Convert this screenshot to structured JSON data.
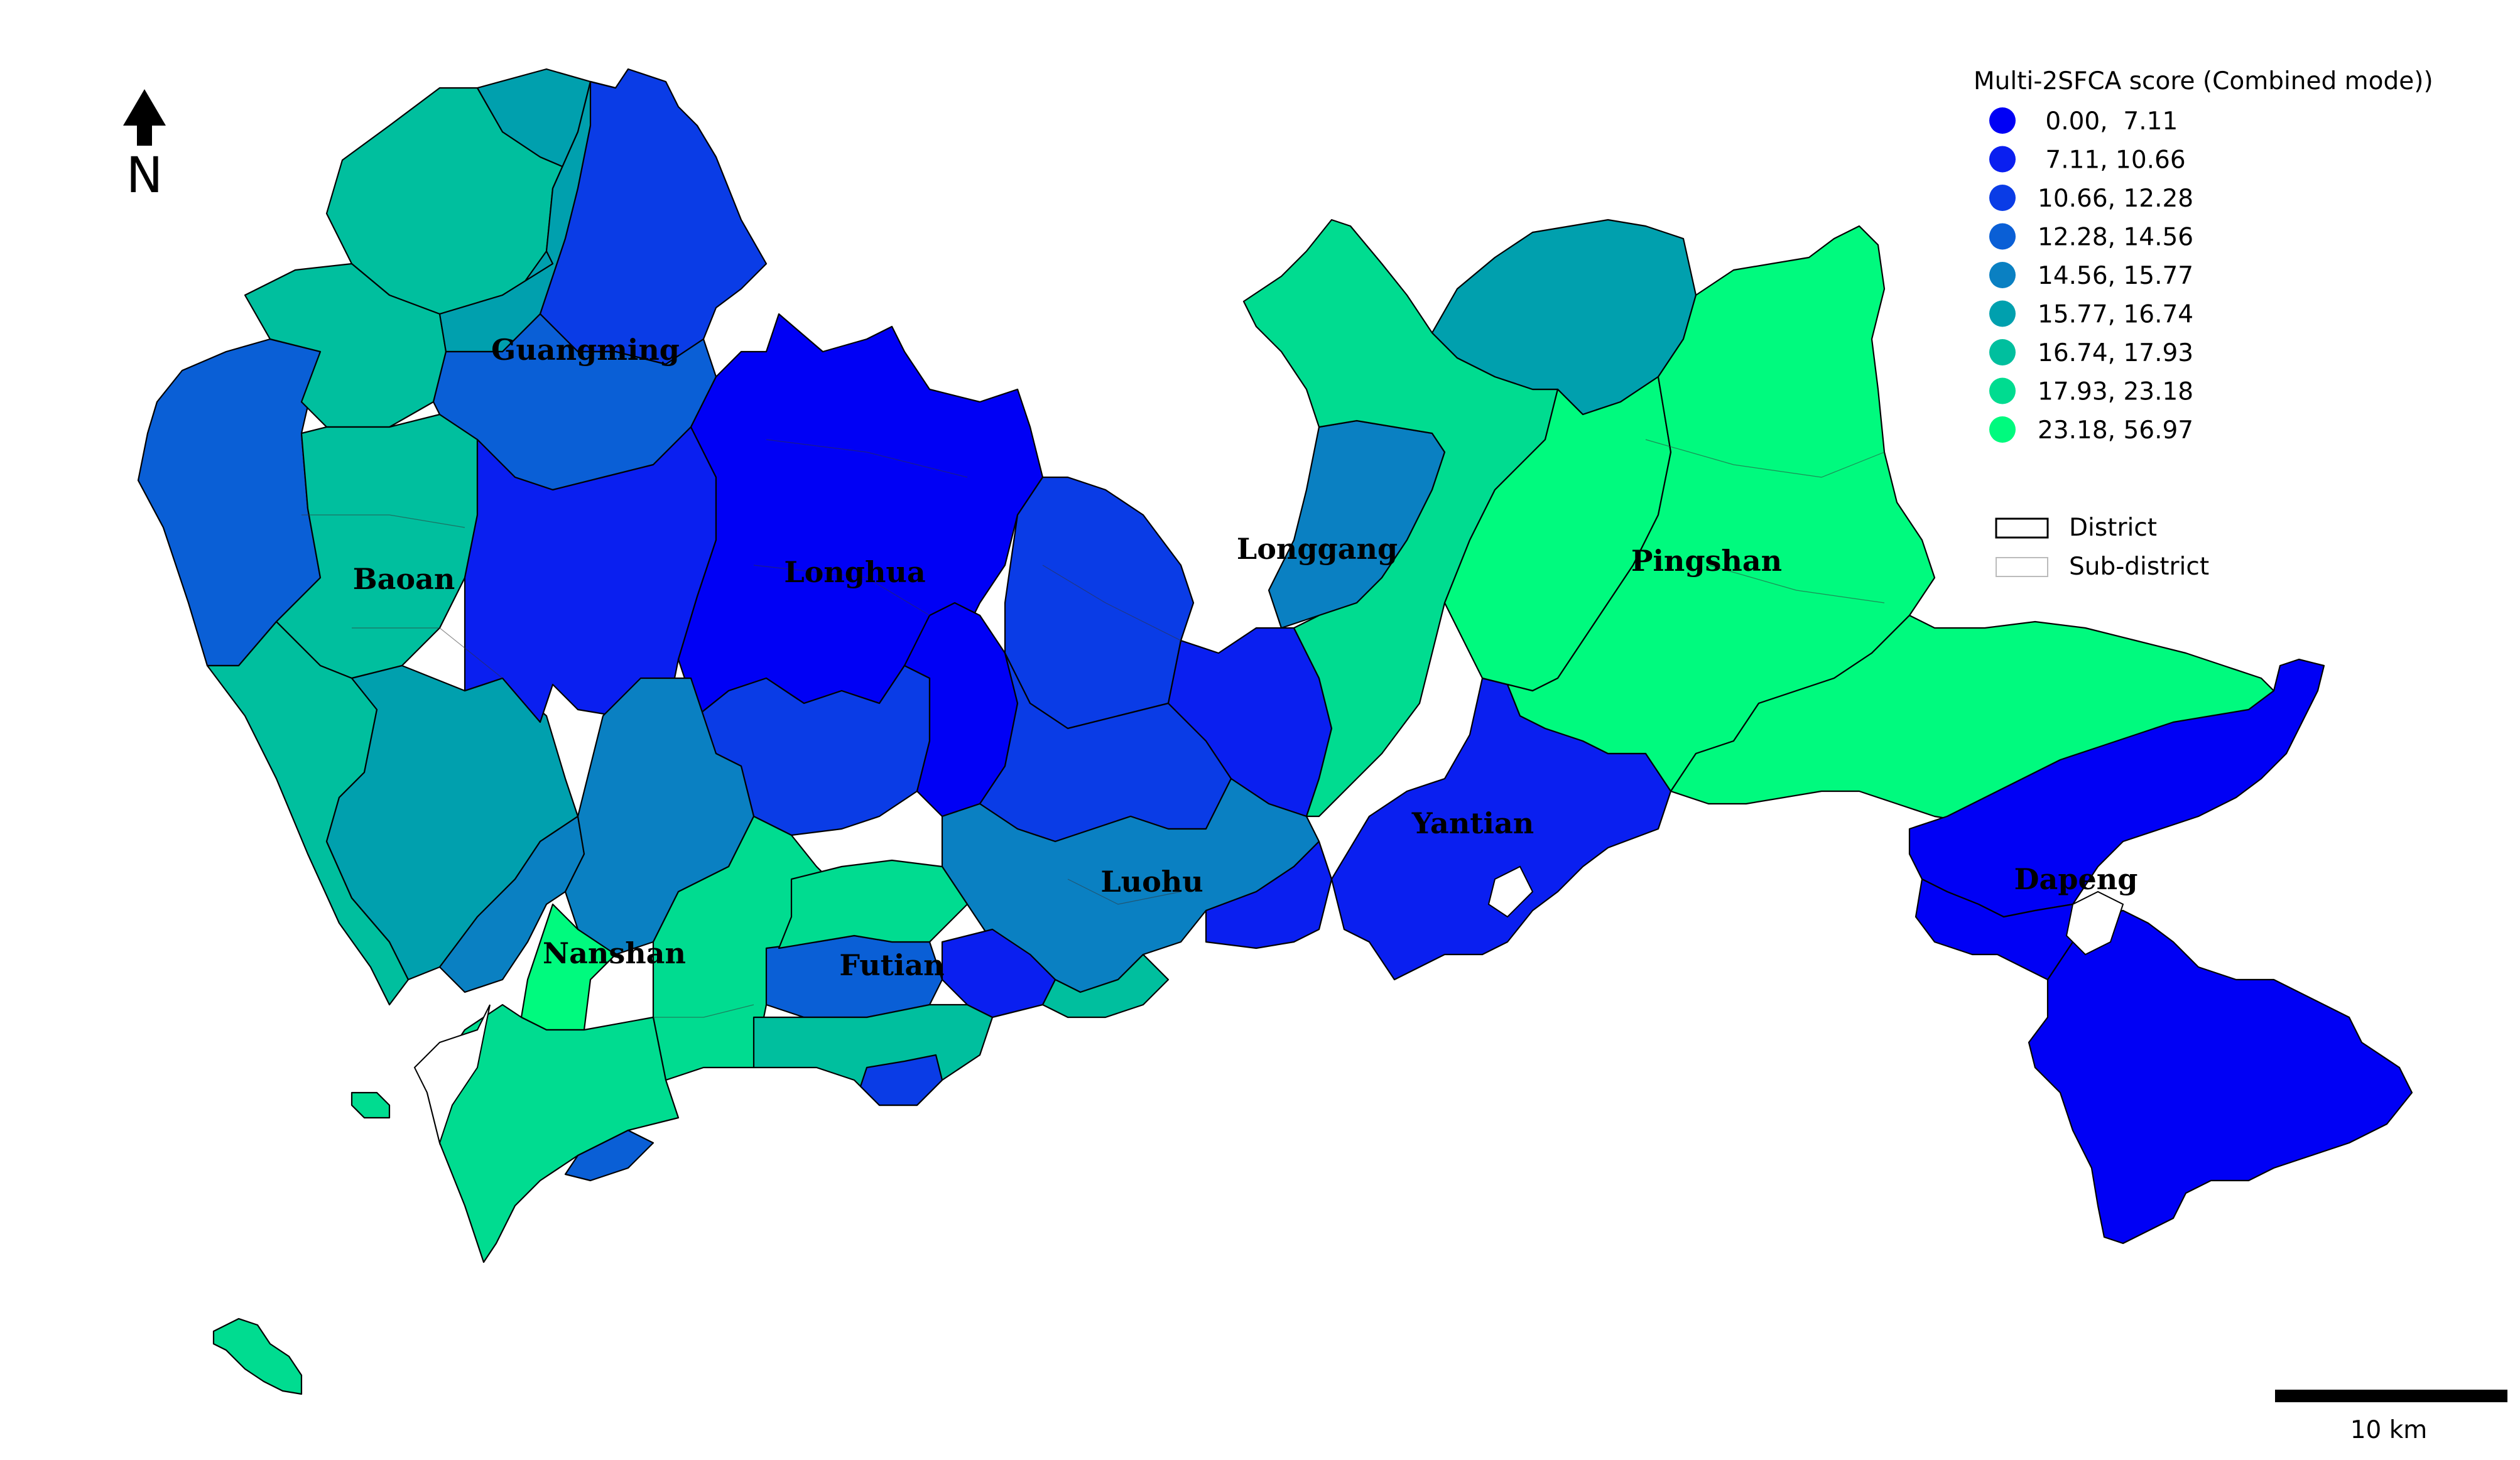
{
  "legend": {
    "title": "Multi-2SFCA score (Combined mode))",
    "classes": [
      {
        "label": " 0.00,  7.11",
        "color": "#0000f5"
      },
      {
        "label": " 7.11, 10.66",
        "color": "#0a1ff0"
      },
      {
        "label": "10.66, 12.28",
        "color": "#0a3ce6"
      },
      {
        "label": "12.28, 14.56",
        "color": "#0a5fd6"
      },
      {
        "label": "14.56, 15.77",
        "color": "#0a80c2"
      },
      {
        "label": "15.77, 16.74",
        "color": "#00a0ae"
      },
      {
        "label": "16.74, 17.93",
        "color": "#00bf9e"
      },
      {
        "label": "17.93, 23.18",
        "color": "#00dc90"
      },
      {
        "label": "23.18, 56.97",
        "color": "#00fa7e"
      }
    ],
    "boundary_items": [
      {
        "label": "District",
        "style": "black-outline"
      },
      {
        "label": "Sub-district",
        "style": "grey-outline"
      }
    ]
  },
  "north_arrow": {
    "label": "N",
    "icon": "north-arrow-icon"
  },
  "scale_bar": {
    "label": "10 km"
  },
  "districts": [
    {
      "name": "Guangming"
    },
    {
      "name": "Baoan"
    },
    {
      "name": "Longhua"
    },
    {
      "name": "Longgang"
    },
    {
      "name": "Pingshan"
    },
    {
      "name": "Nanshan"
    },
    {
      "name": "Futian"
    },
    {
      "name": "Luohu"
    },
    {
      "name": "Yantian"
    },
    {
      "name": "Dapeng"
    }
  ]
}
